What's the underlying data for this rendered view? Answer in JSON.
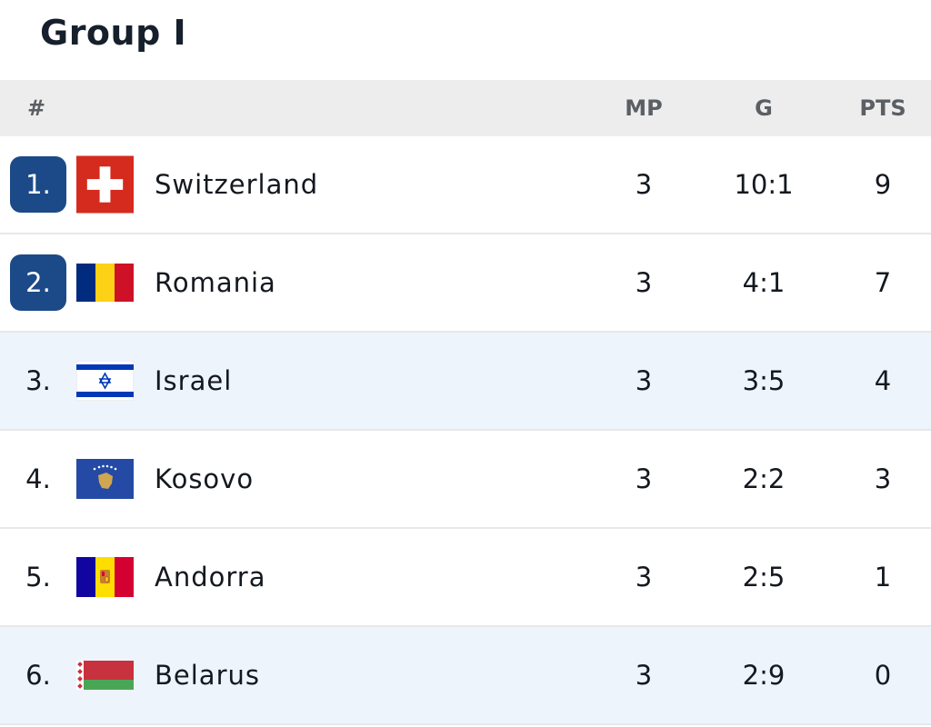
{
  "header": {
    "title": "Group I"
  },
  "table": {
    "columns": [
      "#",
      "MP",
      "G",
      "PTS"
    ],
    "rows": [
      {
        "rank": "1.",
        "team": "Switzerland",
        "mp": 3,
        "g": "10:1",
        "pts": 9
      },
      {
        "rank": "2.",
        "team": "Romania",
        "mp": 3,
        "g": "4:1",
        "pts": 7
      },
      {
        "rank": "3.",
        "team": "Israel",
        "mp": 3,
        "g": "3:5",
        "pts": 4
      },
      {
        "rank": "4.",
        "team": "Kosovo",
        "mp": 3,
        "g": "2:2",
        "pts": 3
      },
      {
        "rank": "5.",
        "team": "Andorra",
        "mp": 3,
        "g": "2:5",
        "pts": 1
      },
      {
        "rank": "6.",
        "team": "Belarus",
        "mp": 3,
        "g": "2:9",
        "pts": 0
      }
    ]
  }
}
